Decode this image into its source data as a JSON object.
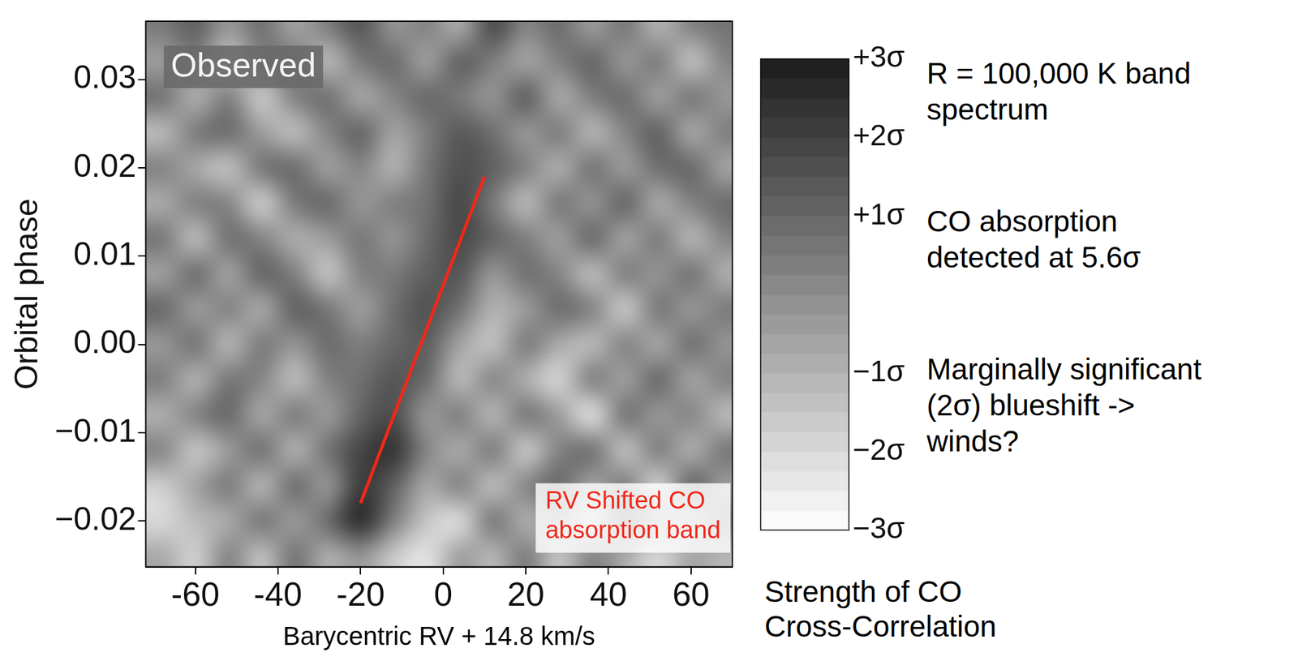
{
  "chart_data": {
    "type": "heatmap",
    "panel_label": "Observed",
    "xlabel": "Barycentric RV + 14.8 km/s",
    "ylabel": "Orbital phase",
    "xlim": [
      -72,
      70
    ],
    "xticks": [
      -60,
      -40,
      -20,
      0,
      20,
      40,
      60
    ],
    "ylim": [
      -0.0252,
      0.0366
    ],
    "yticks": [
      {
        "value": -0.02,
        "label": "−0.02"
      },
      {
        "value": -0.01,
        "label": "−0.01"
      },
      {
        "value": 0,
        "label": "0.00"
      },
      0.01,
      0.02,
      0.03
    ],
    "grid": false,
    "x": [
      -68,
      -60,
      -52,
      -44,
      -36,
      -28,
      -20,
      -12,
      -4,
      4,
      12,
      20,
      28,
      36,
      44,
      52,
      60,
      68
    ],
    "y": [
      0.036,
      0.032,
      0.028,
      0.024,
      0.02,
      0.016,
      0.012,
      0.008,
      0.004,
      0.0,
      -0.004,
      -0.008,
      -0.012,
      -0.016,
      -0.02,
      -0.024
    ],
    "cells": [
      [
        0.5,
        1.2,
        -0.3,
        0.8,
        -0.6,
        0.4,
        1.5,
        -0.2,
        0.3,
        -0.8,
        1.8,
        0.2,
        0.9,
        -0.4,
        0.6,
        -1.0,
        0.3,
        0.7
      ],
      [
        -0.4,
        0.3,
        -1.5,
        0.2,
        0.6,
        -1.2,
        0.5,
        0.9,
        -0.5,
        1.2,
        0.4,
        -0.6,
        0.3,
        1.1,
        -0.3,
        0.5,
        -1.4,
        0.2
      ],
      [
        0.7,
        -0.9,
        0.4,
        -1.6,
        0.3,
        0.8,
        -0.7,
        0.2,
        1.0,
        0.5,
        -0.2,
        1.3,
        -0.8,
        0.4,
        0.9,
        -0.5,
        0.6,
        -0.3
      ],
      [
        -1.2,
        0.5,
        0.9,
        -0.4,
        -1.3,
        0.2,
        1.1,
        -0.6,
        0.4,
        1.4,
        0.8,
        -0.3,
        0.5,
        -1.1,
        0.2,
        1.2,
        -0.7,
        0.4
      ],
      [
        0.3,
        -0.7,
        -1.4,
        0.6,
        0.9,
        -0.5,
        0.2,
        -1.0,
        0.6,
        1.6,
        1.2,
        0.3,
        -0.9,
        0.7,
        -0.4,
        0.8,
        1.0,
        -0.6
      ],
      [
        -0.8,
        0.4,
        0.2,
        -1.7,
        0.5,
        1.0,
        -0.3,
        0.4,
        0.7,
        1.9,
        0.5,
        -1.2,
        0.6,
        -0.2,
        1.1,
        -0.8,
        0.3,
        0.9
      ],
      [
        0.6,
        -1.3,
        0.8,
        0.3,
        -0.9,
        -0.4,
        0.6,
        -0.2,
        0.9,
        1.8,
        1.1,
        0.4,
        -0.5,
        1.0,
        -0.6,
        0.5,
        -1.1,
        0.2
      ],
      [
        -0.5,
        0.9,
        -0.6,
        1.1,
        0.4,
        -1.5,
        0.3,
        0.5,
        1.2,
        1.5,
        -0.3,
        0.8,
        0.2,
        -1.3,
        0.4,
        -0.2,
        0.7,
        -0.9
      ],
      [
        1.0,
        -0.4,
        0.3,
        -0.8,
        1.2,
        0.6,
        -0.5,
        0.8,
        1.6,
        0.7,
        -1.0,
        -0.4,
        0.9,
        0.3,
        -1.6,
        0.6,
        -0.3,
        0.5
      ],
      [
        -0.3,
        0.7,
        -1.1,
        0.5,
        -0.2,
        0.9,
        0.4,
        1.0,
        1.3,
        -0.6,
        -1.4,
        0.5,
        -0.8,
        -1.2,
        0.3,
        -0.7,
        0.8,
        -0.2
      ],
      [
        0.4,
        -1.0,
        0.6,
        0.2,
        -1.3,
        0.3,
        0.8,
        1.5,
        0.9,
        -1.2,
        0.2,
        -0.9,
        -1.9,
        0.4,
        -0.5,
        1.0,
        -0.6,
        0.3
      ],
      [
        -0.9,
        0.3,
        1.0,
        -0.7,
        0.5,
        -0.4,
        1.1,
        1.7,
        -0.3,
        0.4,
        -1.1,
        0.6,
        -0.4,
        -2.2,
        0.7,
        -0.3,
        0.2,
        -1.2
      ],
      [
        0.2,
        -1.5,
        -0.4,
        0.8,
        -1.0,
        0.7,
        1.9,
        2.4,
        0.2,
        -0.8,
        0.5,
        -1.6,
        0.3,
        0.8,
        -1.4,
        0.4,
        -0.9,
        0.6
      ],
      [
        -1.7,
        -0.6,
        0.5,
        -1.1,
        0.9,
        -0.3,
        2.2,
        1.2,
        -0.7,
        0.3,
        -1.3,
        0.2,
        1.0,
        -0.6,
        0.5,
        -1.8,
        1.1,
        -0.4
      ],
      [
        -2.0,
        -1.2,
        -0.8,
        0.6,
        -0.4,
        0.9,
        2.6,
        0.4,
        -1.5,
        -2.1,
        0.6,
        -0.9,
        -0.2,
        -1.7,
        0.8,
        -0.5,
        -1.3,
        0.4
      ],
      [
        -0.7,
        -1.8,
        0.3,
        -1.4,
        0.7,
        -0.9,
        -0.2,
        -1.6,
        -2.3,
        -0.4,
        -1.1,
        0.5,
        -1.5,
        0.3,
        -0.8,
        -2.0,
        -0.6,
        -1.1
      ]
    ],
    "colorbar": {
      "range": [
        -3,
        3
      ],
      "ticks": [
        {
          "value": 3,
          "label": "+3σ"
        },
        {
          "value": 2,
          "label": "+2σ"
        },
        {
          "value": 1,
          "label": "+1σ"
        },
        {
          "value": -1,
          "label": "−1σ"
        },
        {
          "value": -2,
          "label": "−2σ"
        },
        {
          "value": -3,
          "label": "−3σ"
        }
      ],
      "label": [
        "Strength of CO",
        "Cross-Correlation"
      ]
    },
    "annotations": [
      {
        "x": [
          -20,
          10
        ],
        "y": [
          -0.018,
          0.019
        ],
        "color": "#f0281a",
        "text": [
          "RV Shifted CO",
          "absorption band"
        ]
      }
    ],
    "side_text": [
      [
        "R = 100,000 K band",
        "spectrum"
      ],
      [
        "CO absorption",
        "detected at 5.6σ"
      ],
      [
        "Marginally significant",
        "(2σ) blueshift ->",
        "winds?"
      ]
    ]
  }
}
